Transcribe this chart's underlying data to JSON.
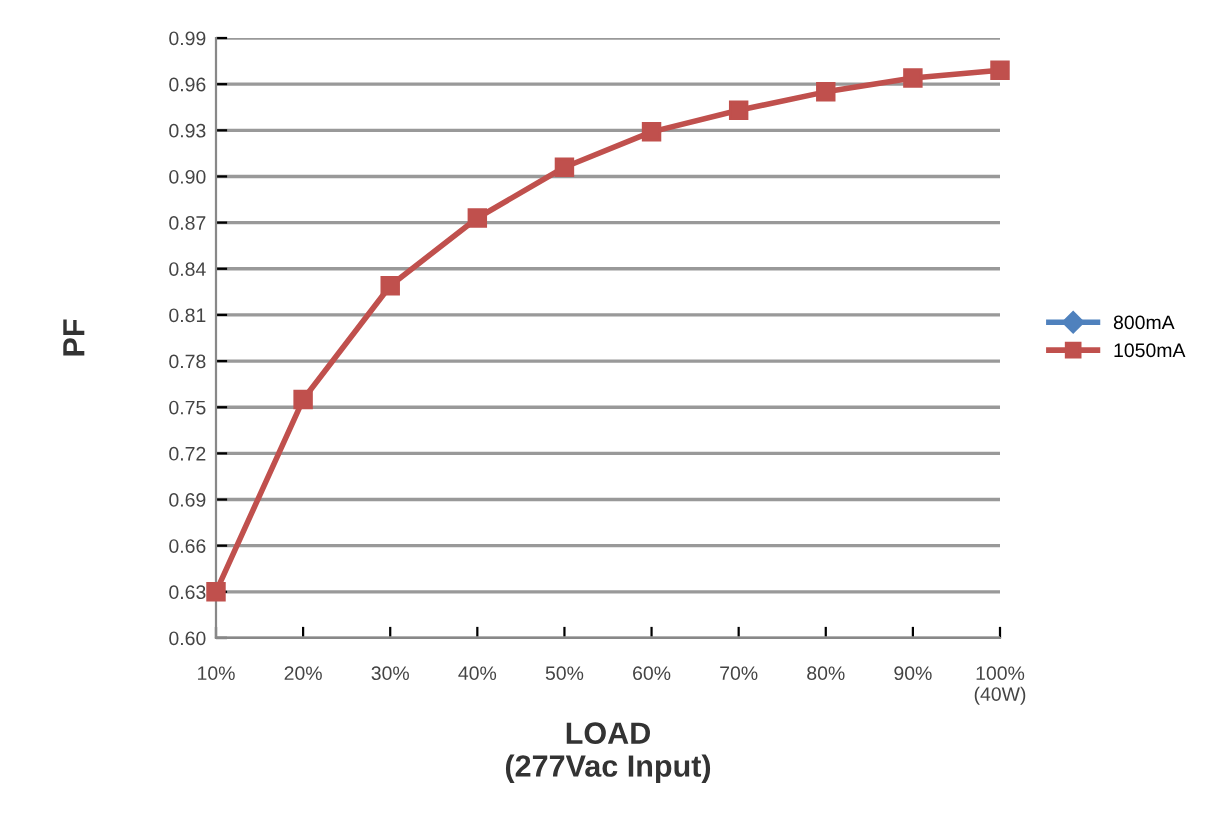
{
  "chart_data": {
    "type": "line",
    "xlabel": "LOAD\n(277Vac Input)",
    "ylabel": "PF",
    "categories": [
      "10%",
      "20%",
      "30%",
      "40%",
      "50%",
      "60%",
      "70%",
      "80%",
      "90%",
      "100%\n(40W)"
    ],
    "series": [
      {
        "name": "800mA",
        "color": "#4f81bd",
        "marker": "diamond",
        "values": [
          null,
          null,
          null,
          null,
          null,
          null,
          null,
          null,
          null,
          null
        ]
      },
      {
        "name": "1050mA",
        "color": "#c0504d",
        "marker": "square",
        "values": [
          0.63,
          0.755,
          0.829,
          0.873,
          0.906,
          0.929,
          0.943,
          0.955,
          0.964,
          0.969
        ]
      }
    ],
    "ylim": [
      0.6,
      0.99
    ],
    "yticks": [
      {
        "value": 0.6,
        "label": "0.60"
      },
      0.63,
      0.66,
      0.69,
      0.72,
      0.75,
      0.78,
      0.81,
      0.84,
      0.87,
      {
        "value": 0.9,
        "label": "0.90"
      },
      0.93,
      0.96,
      0.99
    ],
    "grid": "y",
    "legend": "right",
    "line_style": "solid"
  }
}
